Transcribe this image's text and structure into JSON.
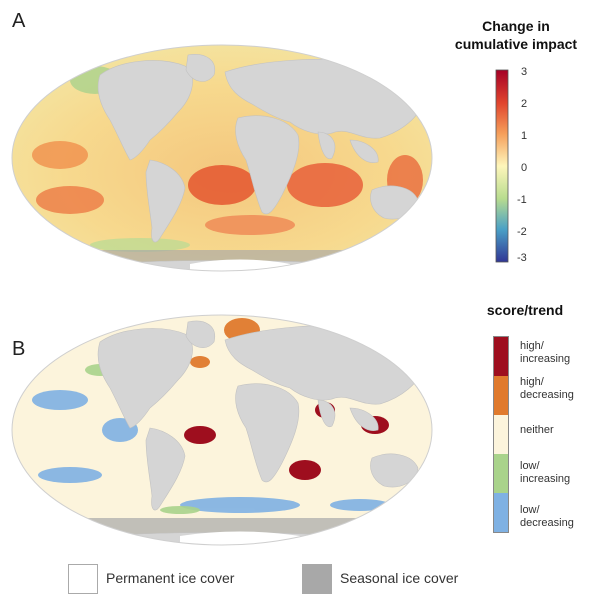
{
  "panel_a": {
    "letter": "A",
    "legend_title_line1": "Change in",
    "legend_title_line2": "cumulative impact",
    "colorbar_ticks": [
      "3",
      "2",
      "1",
      "0",
      "-1",
      "-2",
      "-3"
    ],
    "colorbar_range": [
      -3,
      3
    ],
    "colorbar_colors": [
      "#b2182b",
      "#e4653f",
      "#f6b66a",
      "#fef6bb",
      "#b8dc8f",
      "#4aa0c6",
      "#3a4d9e"
    ]
  },
  "panel_b": {
    "letter": "B",
    "legend_title": "score/trend",
    "categories": [
      {
        "line1": "high/",
        "line2": "increasing",
        "color": "#9e0e1e"
      },
      {
        "line1": "high/",
        "line2": "decreasing",
        "color": "#e07a2d"
      },
      {
        "line1": "neither",
        "line2": "",
        "color": "#fcf4dc"
      },
      {
        "line1": "low/",
        "line2": "increasing",
        "color": "#a9d38b"
      },
      {
        "line1": "low/",
        "line2": "decreasing",
        "color": "#7fb1e3"
      }
    ]
  },
  "bottom_legend": {
    "permanent_label": "Permanent ice cover",
    "seasonal_label": "Seasonal ice cover",
    "permanent_color": "#ffffff",
    "seasonal_color": "#a8a8a8"
  },
  "land_color": "#d5d5d5"
}
